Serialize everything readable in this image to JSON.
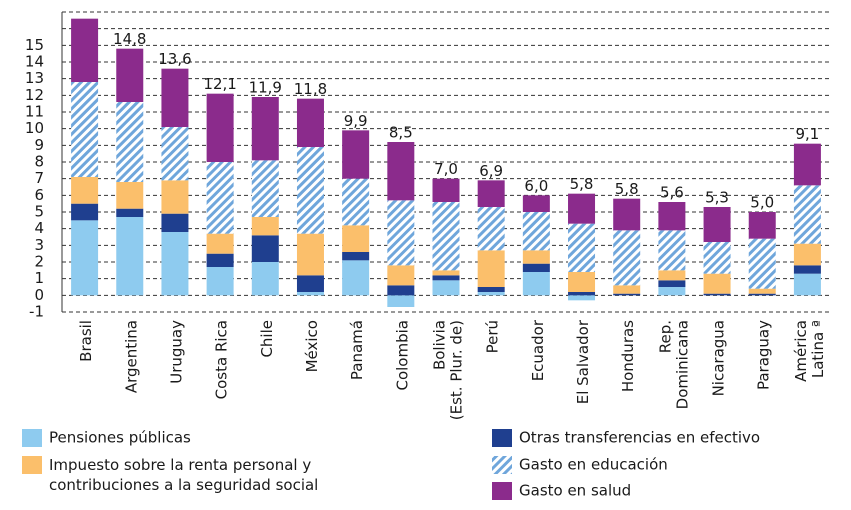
{
  "chart_data": {
    "type": "stacked_bar",
    "categories": [
      "Brasil",
      "Argentina",
      "Uruguay",
      "Costa Rica",
      "Chile",
      "México",
      "Panamá",
      "Colombia",
      "Bolivia\n(Est. Plur. de)",
      "Perú",
      "Ecuador",
      "El Salvador",
      "Honduras",
      "Rep.\nDominicana",
      "Nicaragua",
      "Paraguay",
      "América\nLatina ª"
    ],
    "series": [
      {
        "name": "Pensiones públicas",
        "color": "#8ecbef",
        "values": [
          4.5,
          4.7,
          3.8,
          1.7,
          2.0,
          0.2,
          2.1,
          -0.7,
          0.9,
          0.2,
          1.4,
          -0.3,
          0.0,
          0.5,
          0.0,
          0.0,
          1.3
        ]
      },
      {
        "name": "Otras transferencias en efectivo",
        "color": "#1f3f8f",
        "values": [
          1.0,
          0.5,
          1.1,
          0.8,
          1.6,
          1.0,
          0.5,
          0.6,
          0.3,
          0.3,
          0.5,
          0.2,
          0.1,
          0.4,
          0.1,
          0.1,
          0.5
        ]
      },
      {
        "name": "Impuesto sobre la renta personal y\ncontribuciones a la seguridad social",
        "color": "#fbbf6b",
        "values": [
          1.6,
          1.6,
          2.0,
          1.2,
          1.1,
          2.5,
          1.6,
          1.2,
          0.3,
          2.2,
          0.8,
          1.2,
          0.5,
          0.6,
          1.2,
          0.3,
          1.3
        ]
      },
      {
        "name": "Gasto en educación",
        "color": "#6fa6db",
        "hatch": true,
        "values": [
          5.7,
          4.8,
          3.2,
          4.3,
          3.4,
          5.2,
          2.8,
          3.9,
          4.1,
          2.6,
          2.3,
          2.9,
          3.3,
          2.4,
          1.9,
          3.0,
          3.5
        ]
      },
      {
        "name": "Gasto en salud",
        "color": "#8b2b8c",
        "values": [
          3.8,
          3.2,
          3.5,
          4.1,
          3.8,
          2.9,
          2.9,
          3.5,
          1.4,
          1.6,
          1.0,
          1.8,
          1.9,
          1.7,
          2.1,
          1.6,
          2.5
        ]
      }
    ],
    "totals": {
      "values": [
        null,
        14.8,
        13.6,
        12.1,
        11.9,
        11.8,
        9.9,
        8.5,
        7.0,
        6.9,
        6.0,
        5.8,
        5.8,
        5.6,
        5.3,
        5.0,
        9.1
      ],
      "value_labels": [
        null,
        "14,8",
        "13,6",
        "12,1",
        "11,9",
        "11,8",
        "9,9",
        "8,5",
        "7,0",
        "6,9",
        "6,0",
        "5,8",
        "5,8",
        "5,6",
        "5,3",
        "5,0",
        "9,1"
      ]
    },
    "ylim": [
      -1,
      17
    ],
    "yticks": [
      -1,
      0,
      1,
      2,
      3,
      4,
      5,
      6,
      7,
      8,
      9,
      10,
      11,
      12,
      13,
      14,
      15
    ],
    "grid": true,
    "legend": "bottom"
  }
}
